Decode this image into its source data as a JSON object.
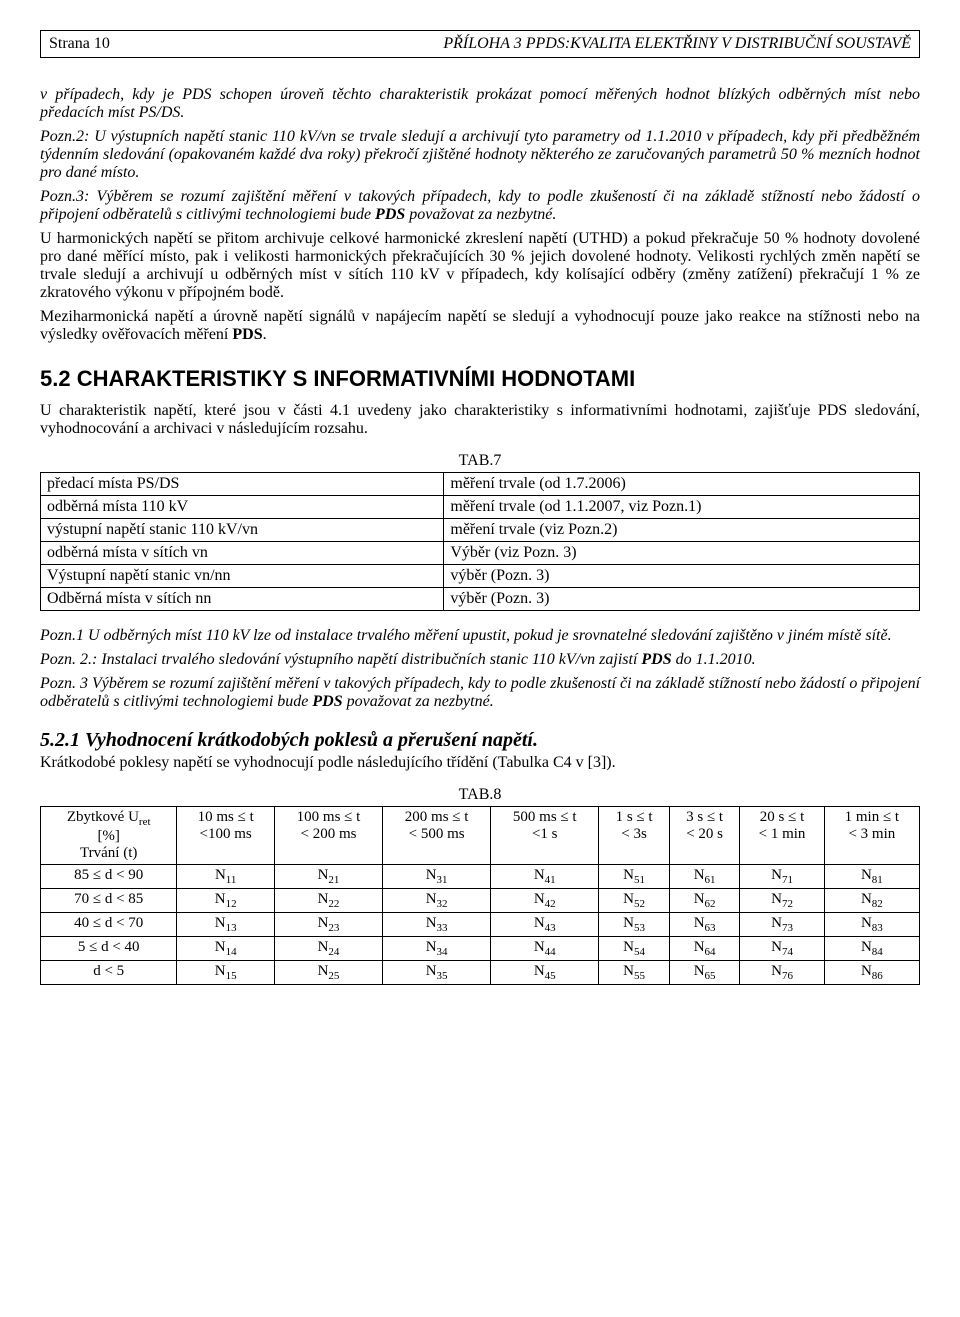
{
  "header": {
    "page_label": "Strana 10",
    "doc_title": "PŘÍLOHA 3 PPDS:KVALITA ELEKTŘINY V DISTRIBUČNÍ SOUSTAVĚ"
  },
  "intro_italic": "v případech, kdy je PDS schopen úroveň těchto charakteristik prokázat pomocí měřených hodnot blízkých odběrných míst nebo předacích míst PS/DS.",
  "pozn2": "Pozn.2: U výstupních napětí stanic 110 kV/vn se trvale sledují a archivují tyto parametry od 1.1.2010 v případech, kdy při předběžném týdenním sledování (opakovaném každé dva roky) překročí zjištěné hodnoty některého ze zaručovaných parametrů 50 % mezních hodnot pro dané místo.",
  "pozn3_prefix": "Pozn.3: Výběrem se rozumí zajištění měření v takových případech, kdy to podle zkušeností či na základě stížností nebo žádostí o připojení odběratelů s citlivými technologiemi bude ",
  "pozn3_bold": "PDS",
  "pozn3_suffix": " považovat za nezbytné.",
  "body1": "U harmonických napětí se přitom archivuje celkové harmonické zkreslení napětí (UTHD) a pokud překračuje 50 % hodnoty dovolené pro dané měřící místo, pak i velikosti harmonických překračujících 30 % jejich dovolené hodnoty. Velikosti rychlých změn napětí se trvale sledují a archivují u odběrných míst v sítích 110 kV v případech, kdy kolísající odběry (změny zatížení) překračují 1 % ze zkratového výkonu v přípojném bodě.",
  "body2_prefix": "Meziharmonická napětí a úrovně napětí signálů v napájecím napětí se sledují a vyhodnocují pouze jako reakce na stížnosti nebo na výsledky ověřovacích měření ",
  "body2_bold": "PDS",
  "body2_suffix": ".",
  "section52": "5.2  CHARAKTERISTIKY S INFORMATIVNÍMI HODNOTAMI",
  "section52_intro": "U charakteristik napětí, které jsou v části 4.1 uvedeny jako charakteristiky s informativními hodnotami, zajišťuje PDS sledování, vyhodnocování a archivaci v následujícím rozsahu.",
  "tab7": {
    "caption": "TAB.7",
    "rows": [
      [
        "předací místa PS/DS",
        "měření trvale (od 1.7.2006)"
      ],
      [
        "odběrná místa 110 kV",
        "měření trvale (od 1.1.2007, viz Pozn.1)"
      ],
      [
        "výstupní napětí stanic 110 kV/vn",
        "měření trvale (viz Pozn.2)"
      ],
      [
        "odběrná místa v sítích vn",
        "Výběr (viz Pozn. 3)"
      ],
      [
        "Výstupní napětí stanic vn/nn",
        "výběr (Pozn. 3)"
      ],
      [
        "Odběrná místa v sítích nn",
        "výběr (Pozn. 3)"
      ]
    ]
  },
  "notes_block": {
    "n1": "Pozn.1 U odběrných míst 110 kV lze od instalace trvalého měření upustit, pokud je srovnatelné sledování zajištěno v jiném místě sítě.",
    "n2_prefix": "Pozn. 2.: Instalaci trvalého sledování výstupního napětí distribučních stanic 110 kV/vn  zajistí ",
    "n2_bold": "PDS",
    "n2_suffix": " do 1.1.2010.",
    "n3_prefix": "Pozn. 3 Výběrem se rozumí zajištění měření v takových případech, kdy to podle zkušeností či na základě stížností nebo žádostí o připojení odběratelů s citlivými technologiemi bude ",
    "n3_bold": "PDS",
    "n3_suffix": " považovat za nezbytné."
  },
  "section521": "5.2.1   Vyhodnocení krátkodobých poklesů a přerušení napětí.",
  "section521_intro": "Krátkodobé poklesy napětí se vyhodnocují podle následujícího třídění (Tabulka C4 v [3]).",
  "tab8": {
    "caption": "TAB.8",
    "col0_l1": "Zbytkové U",
    "col0_sub": "ret",
    "col0_l2": "[%]",
    "col0_l3": "Trvání  (t)",
    "cols": [
      [
        "10 ms ≤ t",
        "<100 ms"
      ],
      [
        "100 ms ≤ t",
        "< 200 ms"
      ],
      [
        "200 ms ≤ t",
        "< 500 ms"
      ],
      [
        "500 ms ≤ t",
        "<1 s"
      ],
      [
        "1 s ≤ t",
        "< 3s"
      ],
      [
        "3 s ≤ t",
        "< 20 s"
      ],
      [
        "20 s ≤ t",
        "< 1 min"
      ],
      [
        "1 min ≤ t",
        "< 3 min"
      ]
    ],
    "rows": [
      {
        "hdr": "85 ≤ d < 90",
        "cells": [
          "11",
          "21",
          "31",
          "41",
          "51",
          "61",
          "71",
          "81"
        ]
      },
      {
        "hdr": "70 ≤ d < 85",
        "cells": [
          "12",
          "22",
          "32",
          "42",
          "52",
          "62",
          "72",
          "82"
        ]
      },
      {
        "hdr": "40 ≤ d < 70",
        "cells": [
          "13",
          "23",
          "33",
          "43",
          "53",
          "63",
          "73",
          "83"
        ]
      },
      {
        "hdr": "5 ≤ d < 40",
        "cells": [
          "14",
          "24",
          "34",
          "44",
          "54",
          "64",
          "74",
          "84"
        ]
      },
      {
        "hdr": "d < 5",
        "cells": [
          "15",
          "25",
          "35",
          "45",
          "55",
          "65",
          "76",
          "86"
        ]
      }
    ]
  }
}
